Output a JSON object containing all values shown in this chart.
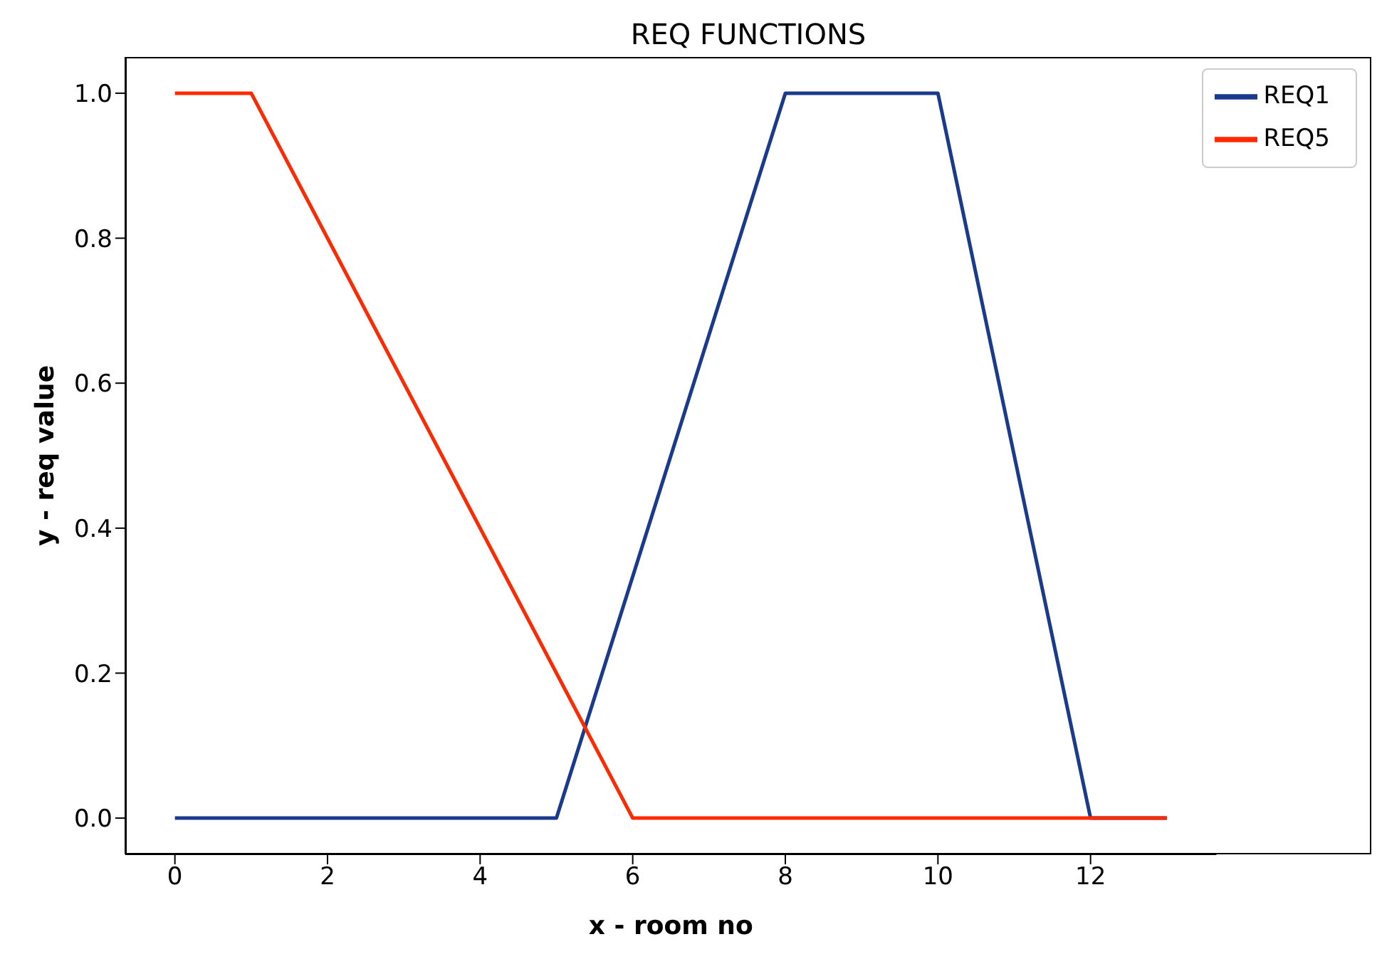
{
  "chart_data": {
    "type": "line",
    "title": "REQ FUNCTIONS",
    "xlabel": "x - room no",
    "ylabel": "y - req value",
    "xlim": [
      -0.65,
      13.65
    ],
    "xticks": [
      0,
      2,
      4,
      6,
      8,
      10,
      12
    ],
    "ylim": [
      -0.05,
      1.05
    ],
    "yticks": [
      {
        "value": 0,
        "label": "0.0"
      },
      {
        "value": 0.2,
        "label": "0.2"
      },
      {
        "value": 0.4,
        "label": "0.4"
      },
      {
        "value": 0.6,
        "label": "0.6"
      },
      {
        "value": 0.8,
        "label": "0.8"
      },
      {
        "value": 1,
        "label": "1.0"
      }
    ],
    "grid": false,
    "legend": "top right",
    "marker": "none",
    "line_style": "solid",
    "series": [
      {
        "name": "REQ1",
        "color": "#1a3a8c",
        "x": [
          0,
          5,
          8,
          10,
          12,
          13
        ],
        "values": [
          0,
          0,
          1,
          1,
          0,
          0
        ]
      },
      {
        "name": "REQ5",
        "color": "#ff2a00",
        "x": [
          0,
          1,
          6,
          13
        ],
        "values": [
          1,
          1,
          0,
          0
        ]
      }
    ]
  }
}
